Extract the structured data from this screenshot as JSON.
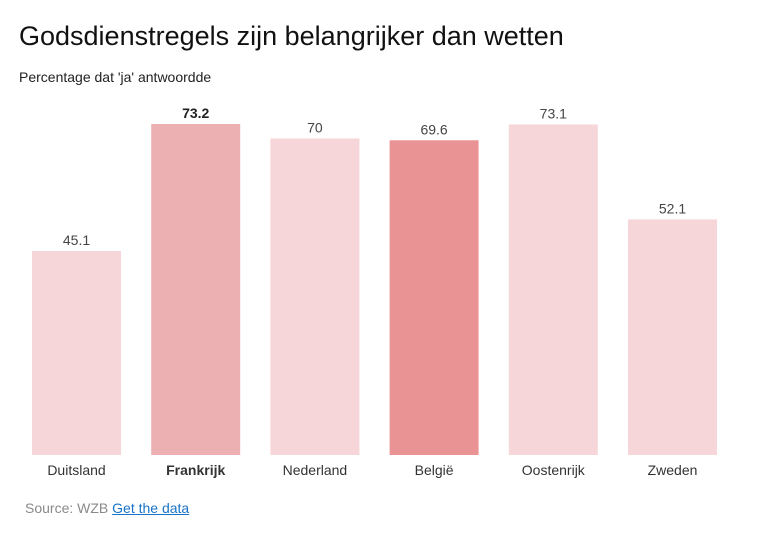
{
  "header": {
    "title": "Godsdienstregels zijn belangrijker dan wetten",
    "subtitle": "Percentage dat 'ja' antwoordde"
  },
  "footer": {
    "source_label": "Source: WZB",
    "link_label": "Get the data"
  },
  "colors": {
    "light": "#f6d6d9",
    "medium": "#edb0b2",
    "strong": "#e99395"
  },
  "chart_data": {
    "type": "bar",
    "title": "Godsdienstregels zijn belangrijker dan wetten",
    "subtitle": "Percentage dat 'ja' antwoordde",
    "xlabel": "",
    "ylabel": "",
    "categories": [
      "Duitsland",
      "Frankrijk",
      "Nederland",
      "België",
      "Oostenrijk",
      "Zweden"
    ],
    "values": [
      45.1,
      73.2,
      70,
      69.6,
      73.1,
      52.1
    ],
    "value_labels": [
      "45.1",
      "73.2",
      "70",
      "69.6",
      "73.1",
      "52.1"
    ],
    "highlight": [
      "light",
      "medium",
      "light",
      "strong",
      "light",
      "light"
    ],
    "bold": [
      false,
      true,
      false,
      false,
      false,
      false
    ],
    "ylim": [
      0,
      73.2
    ],
    "grid": false,
    "legend": "none"
  }
}
